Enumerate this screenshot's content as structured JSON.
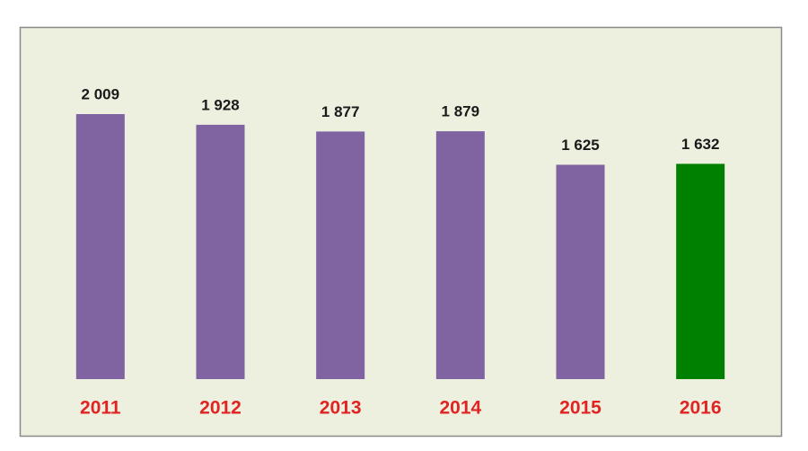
{
  "chart_data": {
    "type": "bar",
    "categories": [
      "2011",
      "2012",
      "2013",
      "2014",
      "2015",
      "2016"
    ],
    "values": [
      2009,
      1928,
      1877,
      1879,
      1625,
      1632
    ],
    "value_labels": [
      "2 009",
      "1 928",
      "1 877",
      "1 879",
      "1 625",
      "1 632"
    ],
    "colors": [
      "#8064a2",
      "#8064a2",
      "#8064a2",
      "#8064a2",
      "#8064a2",
      "#008000"
    ]
  }
}
